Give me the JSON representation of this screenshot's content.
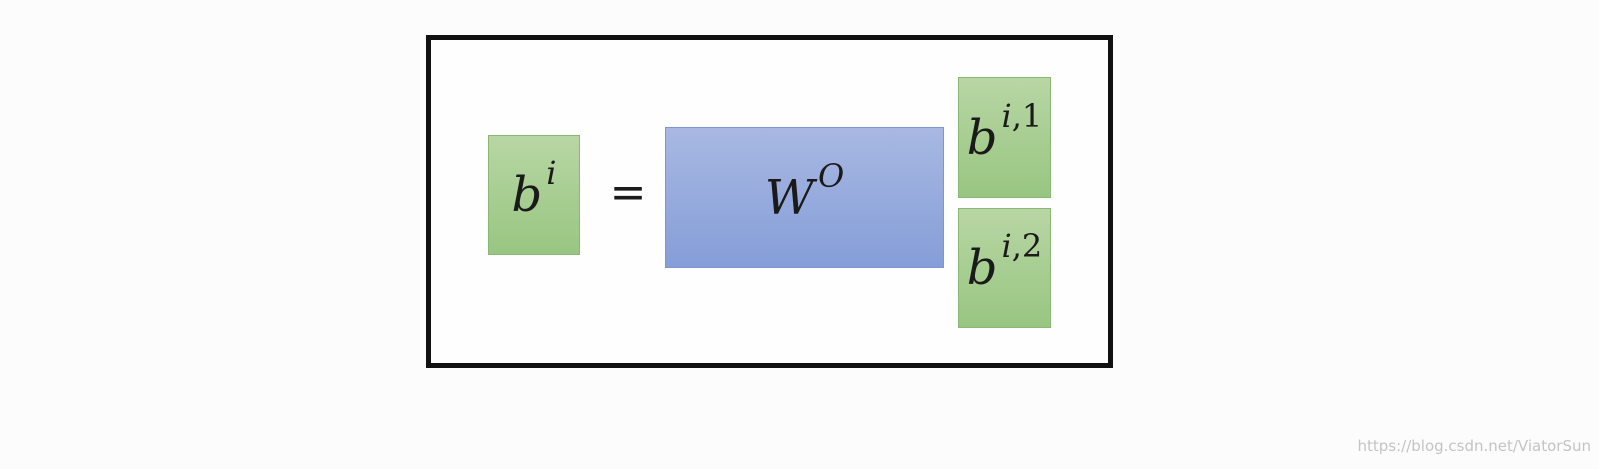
{
  "equation": {
    "lhs": {
      "base": "b",
      "sup": "i",
      "color": "#a9ce94"
    },
    "equals": "=",
    "matrix": {
      "base": "W",
      "sup": "O",
      "color": "#97acdd"
    },
    "vector": [
      {
        "base": "b",
        "sup_var": "i",
        "sup_sep": ",",
        "sup_index": "1"
      },
      {
        "base": "b",
        "sup_var": "i",
        "sup_sep": ",",
        "sup_index": "2"
      }
    ]
  },
  "colors": {
    "frame": "#111111",
    "green": "#a9ce94",
    "blue": "#97acdd"
  },
  "watermark": "https://blog.csdn.net/ViatorSun"
}
